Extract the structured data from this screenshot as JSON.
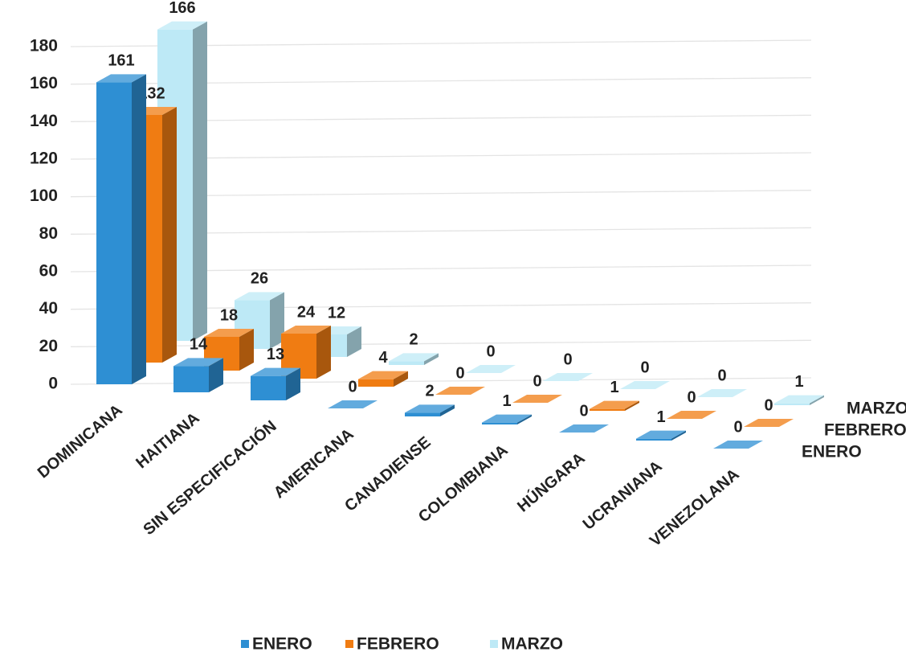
{
  "chart_data": {
    "type": "bar3d",
    "categories": [
      "DOMINICANA",
      "HAITIANA",
      "SIN ESPECIFICACIÓN",
      "AMERICANA",
      "CANADIENSE",
      "COLOMBIANA",
      "HÚNGARA",
      "UCRANIANA",
      "VENEZOLANA"
    ],
    "series": [
      {
        "name": "ENERO",
        "color": "#2e8fd3",
        "values": [
          161,
          14,
          13,
          0,
          2,
          1,
          0,
          1,
          0
        ]
      },
      {
        "name": "FEBRERO",
        "color": "#f07c12",
        "values": [
          132,
          18,
          24,
          4,
          0,
          0,
          1,
          0,
          0
        ]
      },
      {
        "name": "MARZO",
        "color": "#bde9f6",
        "values": [
          166,
          26,
          12,
          2,
          0,
          0,
          0,
          0,
          1
        ]
      }
    ],
    "ylim": [
      0,
      180
    ],
    "yticks": [
      0,
      20,
      40,
      60,
      80,
      100,
      120,
      140,
      160,
      180
    ],
    "grid": true,
    "legend": "bottom"
  }
}
